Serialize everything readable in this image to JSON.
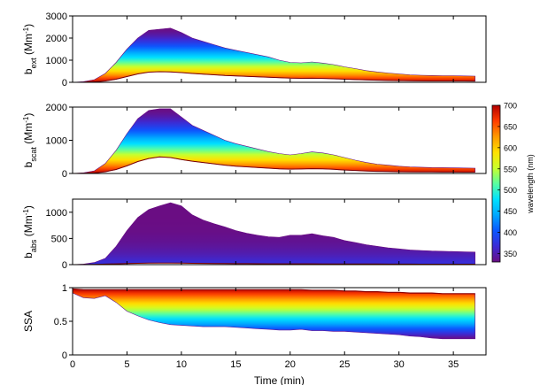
{
  "chart_data": [
    {
      "type": "area",
      "ylabel": {
        "prefix": "b",
        "sub": "ext",
        "unit": " (Mm",
        "sup": "-1",
        "close": ")"
      },
      "xlim": [
        0,
        38
      ],
      "ylim": [
        0,
        3000
      ],
      "yticks": [
        0,
        1000,
        2000,
        3000
      ],
      "xticks": [
        0,
        5,
        10,
        15,
        20,
        25,
        30,
        35
      ],
      "x": [
        0,
        1,
        2,
        3,
        4,
        5,
        6,
        7,
        8,
        9,
        10,
        11,
        12,
        13,
        14,
        15,
        16,
        17,
        18,
        19,
        20,
        21,
        22,
        23,
        24,
        25,
        26,
        27,
        28,
        29,
        30,
        31,
        32,
        33,
        34,
        35,
        36,
        37
      ],
      "upper": [
        0,
        30,
        120,
        400,
        900,
        1500,
        2000,
        2350,
        2400,
        2450,
        2250,
        2000,
        1850,
        1700,
        1550,
        1450,
        1350,
        1250,
        1150,
        1000,
        900,
        880,
        920,
        870,
        800,
        700,
        620,
        530,
        470,
        420,
        380,
        340,
        320,
        310,
        300,
        300,
        290,
        280
      ],
      "lower": [
        0,
        5,
        20,
        60,
        140,
        260,
        380,
        460,
        480,
        470,
        440,
        400,
        370,
        340,
        310,
        290,
        270,
        250,
        230,
        210,
        190,
        180,
        185,
        175,
        160,
        140,
        125,
        110,
        95,
        85,
        75,
        68,
        64,
        62,
        60,
        60,
        58,
        56
      ],
      "mode": "spectral"
    },
    {
      "type": "area",
      "ylabel": {
        "prefix": "b",
        "sub": "scat",
        "unit": " (Mm",
        "sup": "-1",
        "close": ")"
      },
      "xlim": [
        0,
        38
      ],
      "ylim": [
        0,
        2000
      ],
      "yticks": [
        0,
        1000,
        2000
      ],
      "xticks": [
        0,
        5,
        10,
        15,
        20,
        25,
        30,
        35
      ],
      "x": [
        0,
        1,
        2,
        3,
        4,
        5,
        6,
        7,
        8,
        9,
        10,
        11,
        12,
        13,
        14,
        15,
        16,
        17,
        18,
        19,
        20,
        21,
        22,
        23,
        24,
        25,
        26,
        27,
        28,
        29,
        30,
        31,
        32,
        33,
        34,
        35,
        36,
        37
      ],
      "upper": [
        0,
        20,
        80,
        300,
        700,
        1200,
        1650,
        1900,
        1950,
        1950,
        1700,
        1450,
        1300,
        1150,
        1000,
        900,
        820,
        740,
        660,
        600,
        560,
        600,
        650,
        620,
        560,
        480,
        400,
        330,
        280,
        250,
        220,
        200,
        190,
        180,
        175,
        170,
        165,
        160
      ],
      "lower": [
        0,
        5,
        15,
        50,
        120,
        230,
        360,
        450,
        500,
        480,
        420,
        370,
        330,
        290,
        250,
        220,
        200,
        180,
        160,
        140,
        130,
        135,
        145,
        140,
        125,
        105,
        90,
        75,
        65,
        58,
        52,
        48,
        46,
        44,
        43,
        42,
        41,
        40
      ],
      "mode": "spectral"
    },
    {
      "type": "area",
      "ylabel": {
        "prefix": "b",
        "sub": "abs",
        "unit": " (Mm",
        "sup": "-1",
        "close": ")"
      },
      "xlim": [
        0,
        38
      ],
      "ylim": [
        0,
        1250
      ],
      "yticks": [
        0,
        500,
        1000
      ],
      "xticks": [
        0,
        5,
        10,
        15,
        20,
        25,
        30,
        35
      ],
      "x": [
        0,
        1,
        2,
        3,
        4,
        5,
        6,
        7,
        8,
        9,
        10,
        11,
        12,
        13,
        14,
        15,
        16,
        17,
        18,
        19,
        20,
        21,
        22,
        23,
        24,
        25,
        26,
        27,
        28,
        29,
        30,
        31,
        32,
        33,
        34,
        35,
        36,
        37
      ],
      "upper": [
        0,
        10,
        40,
        120,
        350,
        650,
        900,
        1050,
        1120,
        1180,
        1120,
        950,
        850,
        780,
        720,
        650,
        600,
        560,
        530,
        520,
        560,
        560,
        590,
        550,
        520,
        460,
        420,
        380,
        350,
        320,
        300,
        280,
        270,
        260,
        255,
        250,
        245,
        240
      ],
      "lower": [
        0,
        2,
        5,
        10,
        15,
        20,
        25,
        28,
        30,
        30,
        28,
        26,
        24,
        22,
        20,
        19,
        18,
        17,
        16,
        15,
        15,
        15,
        15,
        14,
        13,
        12,
        12,
        11,
        11,
        10,
        10,
        10,
        9,
        9,
        9,
        9,
        9,
        9
      ],
      "mode": "absorption"
    },
    {
      "type": "area",
      "ylabel": {
        "prefix": "SSA",
        "sub": "",
        "unit": "",
        "sup": "",
        "close": ""
      },
      "xlabel": "Time (min)",
      "xlim": [
        0,
        38
      ],
      "ylim": [
        0,
        1
      ],
      "yticks": [
        0,
        0.5,
        1
      ],
      "xticks": [
        0,
        5,
        10,
        15,
        20,
        25,
        30,
        35
      ],
      "x": [
        0,
        1,
        2,
        3,
        4,
        5,
        6,
        7,
        8,
        9,
        10,
        11,
        12,
        13,
        14,
        15,
        16,
        17,
        18,
        19,
        20,
        21,
        22,
        23,
        24,
        25,
        26,
        27,
        28,
        29,
        30,
        31,
        32,
        33,
        34,
        35,
        36,
        37
      ],
      "upper": [
        0.98,
        0.97,
        0.97,
        0.97,
        0.97,
        0.97,
        0.97,
        0.97,
        0.97,
        0.97,
        0.97,
        0.97,
        0.97,
        0.97,
        0.97,
        0.97,
        0.97,
        0.97,
        0.97,
        0.97,
        0.97,
        0.97,
        0.96,
        0.96,
        0.96,
        0.95,
        0.95,
        0.94,
        0.94,
        0.93,
        0.93,
        0.92,
        0.92,
        0.92,
        0.91,
        0.91,
        0.91,
        0.91
      ],
      "lower": [
        0.92,
        0.85,
        0.84,
        0.88,
        0.78,
        0.65,
        0.58,
        0.52,
        0.48,
        0.45,
        0.44,
        0.43,
        0.42,
        0.42,
        0.42,
        0.41,
        0.4,
        0.39,
        0.38,
        0.37,
        0.37,
        0.38,
        0.36,
        0.36,
        0.35,
        0.35,
        0.34,
        0.33,
        0.32,
        0.31,
        0.3,
        0.28,
        0.27,
        0.25,
        0.24,
        0.24,
        0.24,
        0.24
      ],
      "mode": "ssa"
    }
  ],
  "colorbar": {
    "label": "wavelength (nm)",
    "ticks": [
      700,
      650,
      600,
      550,
      500,
      450,
      400,
      350
    ],
    "range": [
      330,
      700
    ]
  },
  "colormap": [
    "#6a0d83",
    "#3b2bd6",
    "#0b57ff",
    "#00a8ff",
    "#00e1ff",
    "#59ffa0",
    "#c9ff2b",
    "#ffe100",
    "#ff9a00",
    "#ff3d00",
    "#b30000"
  ]
}
